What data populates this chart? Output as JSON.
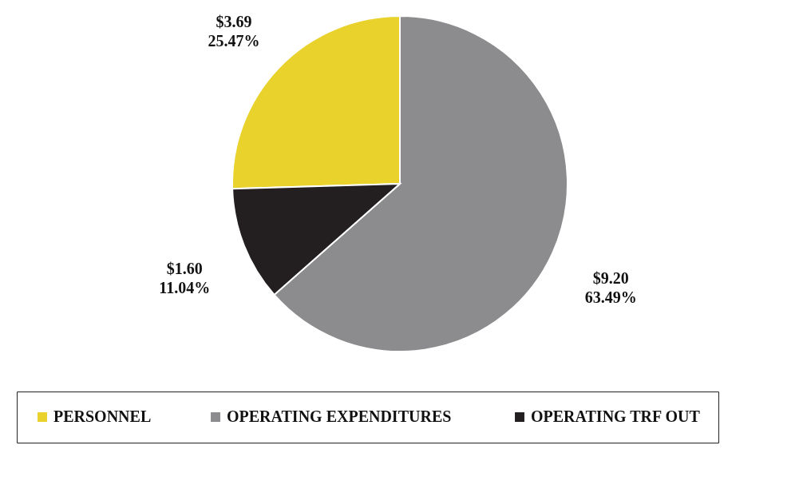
{
  "chart_data": {
    "type": "pie",
    "categories": [
      "PERSONNEL",
      "OPERATING  EXPENDITURES",
      "OPERATING TRF OUT"
    ],
    "values": [
      3.69,
      9.2,
      1.6
    ],
    "colors": [
      "#e8d22b",
      "#8c8c8e",
      "#231f20"
    ],
    "value_labels": [
      "$3.69\n25.47%",
      "$9.20\n63.49%",
      "$1.60\n11.04%"
    ],
    "legend": "bottom"
  }
}
